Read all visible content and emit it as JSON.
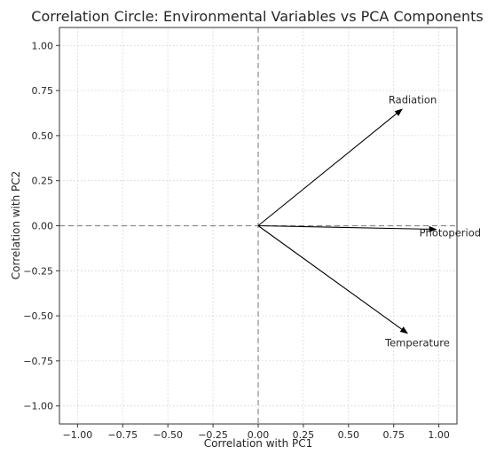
{
  "chart_data": {
    "type": "scatter",
    "title": "Correlation Circle: Environmental Variables vs PCA Components",
    "xlabel": "Correlation with PC1",
    "ylabel": "Correlation with PC2",
    "xlim": [
      -1.1,
      1.1
    ],
    "ylim": [
      -1.1,
      1.1
    ],
    "xticks": [
      -1.0,
      -0.75,
      -0.5,
      -0.25,
      0.0,
      0.25,
      0.5,
      0.75,
      1.0
    ],
    "yticks": [
      -1.0,
      -0.75,
      -0.5,
      -0.25,
      0.0,
      0.25,
      0.5,
      0.75,
      1.0
    ],
    "xtick_labels": [
      "−1.00",
      "−0.75",
      "−0.50",
      "−0.25",
      "0.00",
      "0.25",
      "0.50",
      "0.75",
      "1.00"
    ],
    "ytick_labels": [
      "−1.00",
      "−0.75",
      "−0.50",
      "−0.25",
      "0.00",
      "0.25",
      "0.50",
      "0.75",
      "1.00"
    ],
    "grid": true,
    "reference_lines": {
      "x": 0.0,
      "y": 0.0,
      "style": "dashed",
      "color": "#8c8c8c"
    },
    "vectors": [
      {
        "name": "Radiation",
        "x": 0.8,
        "y": 0.65
      },
      {
        "name": "Photoperiod",
        "x": 0.99,
        "y": -0.02
      },
      {
        "name": "Temperature",
        "x": 0.83,
        "y": -0.6
      }
    ],
    "colors": {
      "vector": "#000000",
      "grid": "#d9d9d9",
      "text": "#262626"
    }
  }
}
